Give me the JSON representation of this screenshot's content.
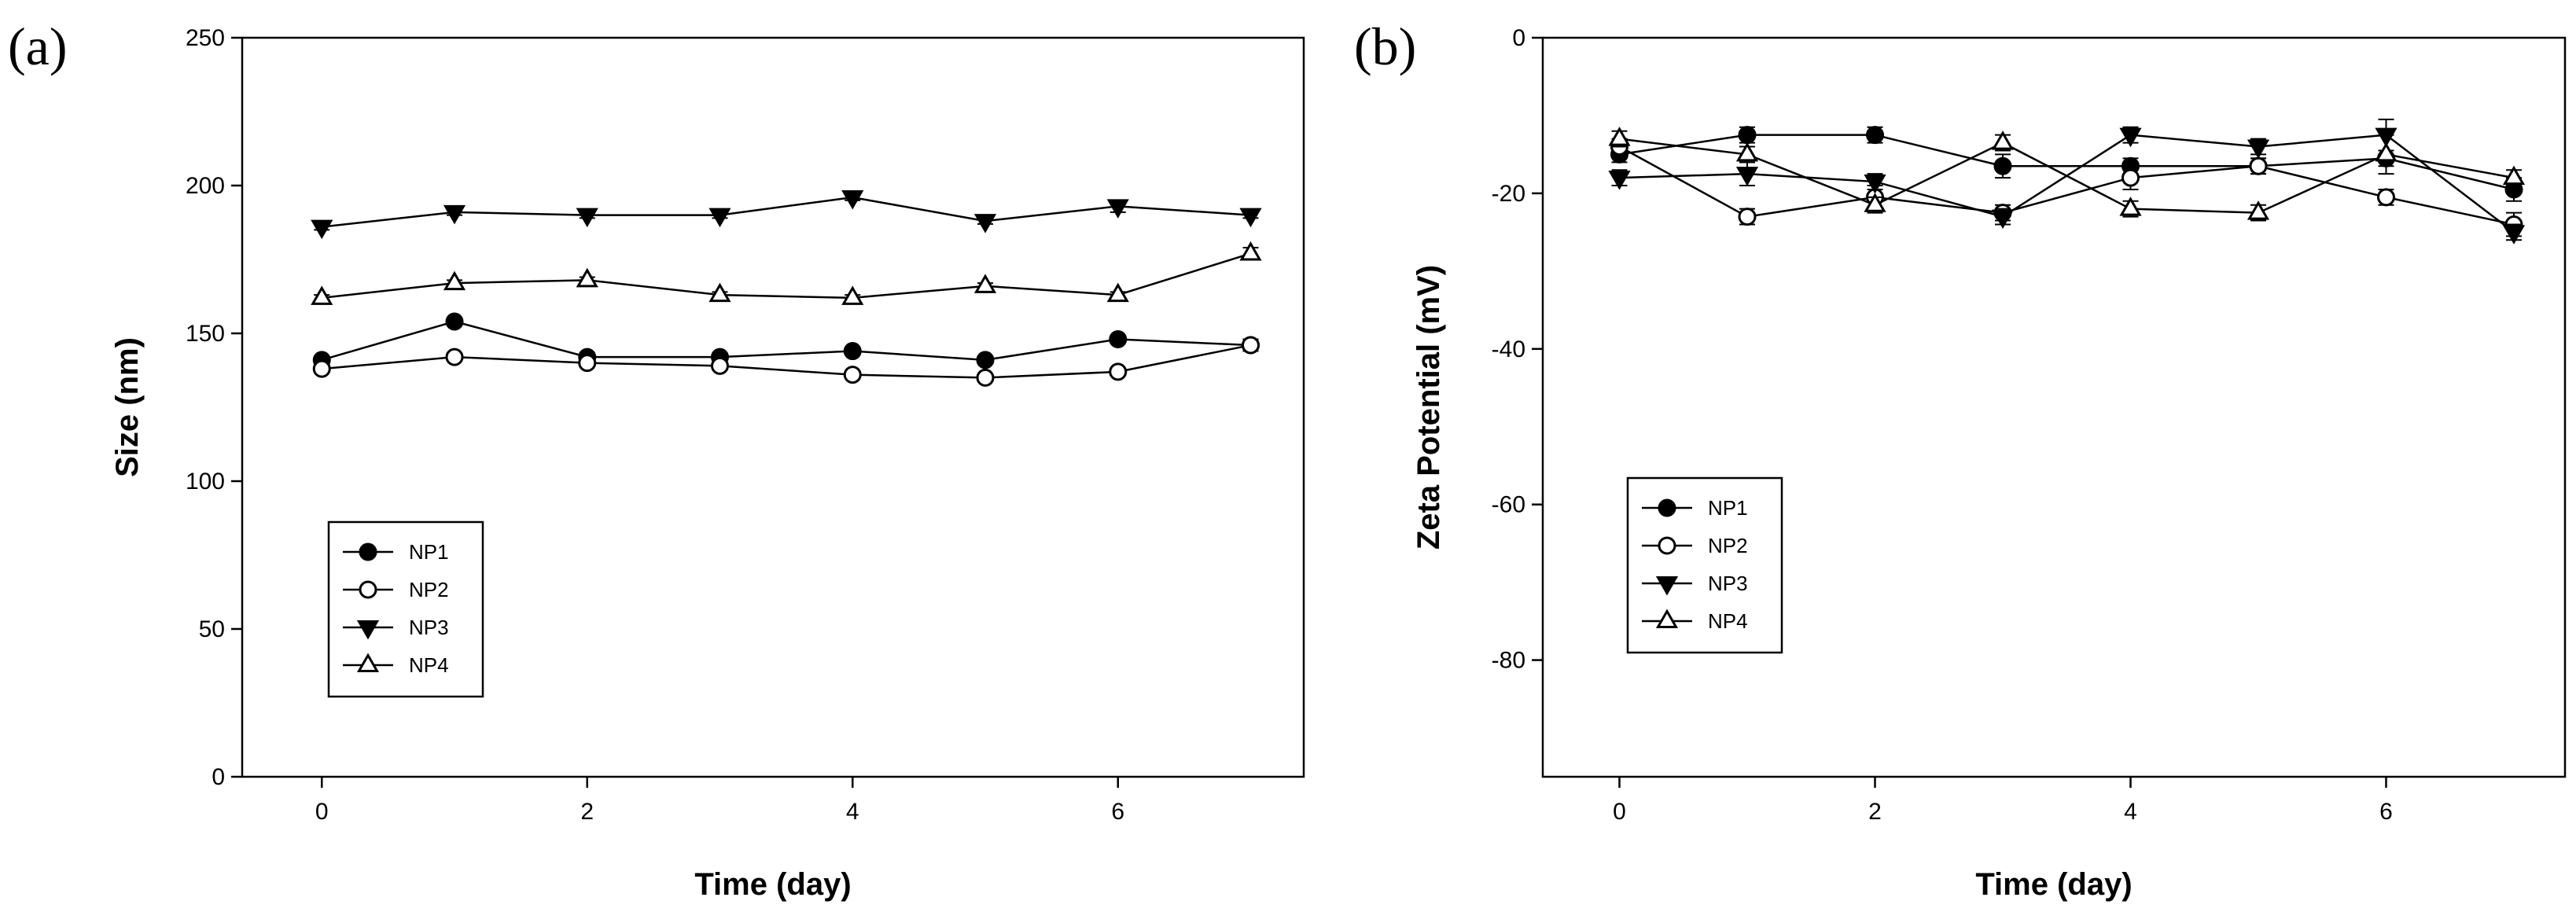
{
  "chart_data": [
    {
      "type": "line",
      "panel_label": "(a)",
      "title": "",
      "xlabel": "Time (day)",
      "ylabel": "Size (nm)",
      "xlim": [
        -0.6,
        7.4
      ],
      "ylim": [
        0,
        250
      ],
      "xticks": [
        0,
        2,
        4,
        6
      ],
      "yticks": [
        0,
        50,
        100,
        150,
        200,
        250
      ],
      "grid": false,
      "legend_position": "bottom-left",
      "x": [
        0,
        1,
        2,
        3,
        4,
        5,
        6,
        7
      ],
      "series": [
        {
          "name": "NP1",
          "marker": "circle-filled",
          "values": [
            141,
            154,
            142,
            142,
            144,
            141,
            148,
            146
          ],
          "errors": [
            1,
            1,
            1,
            1,
            1,
            1,
            1,
            1
          ]
        },
        {
          "name": "NP2",
          "marker": "circle-open",
          "values": [
            138,
            142,
            140,
            139,
            136,
            135,
            137,
            146
          ],
          "errors": [
            1,
            1,
            1,
            1,
            1,
            1,
            1,
            2
          ]
        },
        {
          "name": "NP3",
          "marker": "triangle-down-filled",
          "values": [
            186,
            191,
            190,
            190,
            196,
            188,
            193,
            190
          ],
          "errors": [
            1,
            1,
            1,
            1,
            1,
            1,
            2,
            1
          ]
        },
        {
          "name": "NP4",
          "marker": "triangle-up-open",
          "values": [
            162,
            167,
            168,
            163,
            162,
            166,
            163,
            177
          ],
          "errors": [
            1,
            1,
            1,
            1,
            1,
            1,
            1,
            2
          ]
        }
      ]
    },
    {
      "type": "line",
      "panel_label": "(b)",
      "title": "",
      "xlabel": "Time (day)",
      "ylabel": "Zeta Potential (mV)",
      "xlim": [
        -0.6,
        7.4
      ],
      "ylim": [
        -95,
        0
      ],
      "xticks": [
        0,
        2,
        4,
        6
      ],
      "yticks": [
        0,
        -20,
        -40,
        -60,
        -80
      ],
      "grid": false,
      "legend_position": "middle-left",
      "x": [
        0,
        1,
        2,
        3,
        4,
        5,
        6,
        7
      ],
      "series": [
        {
          "name": "NP1",
          "marker": "circle-filled",
          "values": [
            -15,
            -12.5,
            -12.5,
            -16.5,
            -16.5,
            -16.5,
            -15.5,
            -19.5
          ],
          "errors": [
            1,
            1,
            1,
            1.5,
            1,
            1,
            1,
            1.5
          ]
        },
        {
          "name": "NP2",
          "marker": "circle-open",
          "values": [
            -14,
            -23,
            -20.5,
            -22.5,
            -18,
            -16.5,
            -20.5,
            -24
          ],
          "errors": [
            1,
            1,
            1.5,
            1,
            1.5,
            1,
            1,
            1.5
          ]
        },
        {
          "name": "NP3",
          "marker": "triangle-down-filled",
          "values": [
            -18,
            -17.5,
            -18.5,
            -23,
            -12.5,
            -14,
            -12.5,
            -25
          ],
          "errors": [
            1,
            1.5,
            1,
            1,
            1,
            1,
            2,
            1
          ]
        },
        {
          "name": "NP4",
          "marker": "triangle-up-open",
          "values": [
            -13,
            -15,
            -21.5,
            -13.5,
            -22,
            -22.5,
            -15,
            -18
          ],
          "errors": [
            1,
            1,
            1,
            1,
            1,
            1,
            2.5,
            1
          ]
        }
      ]
    }
  ]
}
